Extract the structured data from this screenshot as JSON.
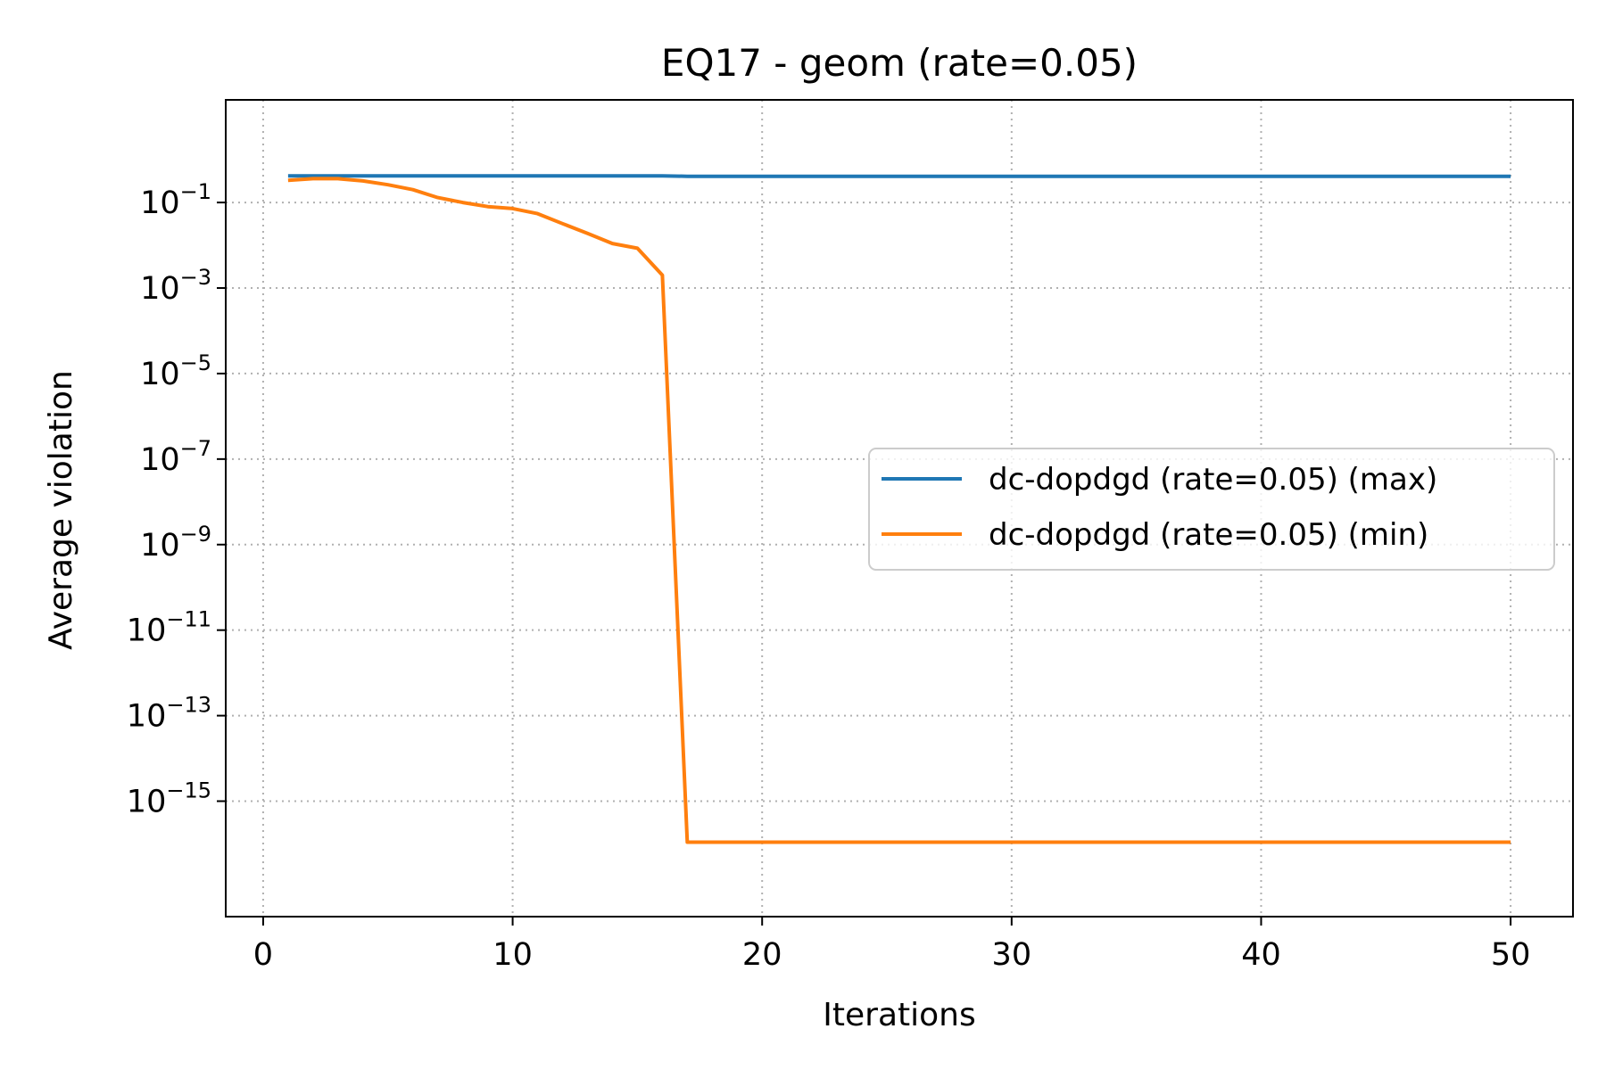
{
  "chart_data": {
    "type": "line",
    "title": "EQ17 - geom (rate=0.05)",
    "xlabel": "Iterations",
    "ylabel": "Average violation",
    "xlim": [
      -1.5,
      52.5
    ],
    "ylim_log10": [
      -17.7,
      1.4
    ],
    "yscale": "log",
    "xticks": [
      0,
      10,
      20,
      30,
      40,
      50
    ],
    "yticks_exp": [
      -1,
      -3,
      -5,
      -7,
      -9,
      -11,
      -13,
      -15
    ],
    "ytick_base": "10",
    "grid": true,
    "legend_position": "center-right",
    "series": [
      {
        "name": "dc-dopdgd (rate=0.05) (max)",
        "color": "#1f77b4",
        "x": [
          1,
          2,
          3,
          4,
          5,
          6,
          7,
          8,
          9,
          10,
          11,
          12,
          13,
          14,
          15,
          16,
          17,
          18,
          19,
          20,
          21,
          22,
          23,
          24,
          25,
          26,
          27,
          28,
          29,
          30,
          31,
          32,
          33,
          34,
          35,
          36,
          37,
          38,
          39,
          40,
          41,
          42,
          43,
          44,
          45,
          46,
          47,
          48,
          49,
          50
        ],
        "y": [
          0.42,
          0.42,
          0.42,
          0.42,
          0.42,
          0.42,
          0.42,
          0.42,
          0.42,
          0.42,
          0.42,
          0.42,
          0.42,
          0.42,
          0.42,
          0.42,
          0.41,
          0.41,
          0.41,
          0.41,
          0.41,
          0.41,
          0.41,
          0.41,
          0.41,
          0.41,
          0.41,
          0.41,
          0.41,
          0.41,
          0.41,
          0.41,
          0.41,
          0.41,
          0.41,
          0.41,
          0.41,
          0.41,
          0.41,
          0.41,
          0.41,
          0.41,
          0.41,
          0.41,
          0.41,
          0.41,
          0.41,
          0.41,
          0.41,
          0.41
        ]
      },
      {
        "name": "dc-dopdgd (rate=0.05) (min)",
        "color": "#ff7f0e",
        "x": [
          1,
          2,
          3,
          4,
          5,
          6,
          7,
          8,
          9,
          10,
          11,
          12,
          13,
          14,
          15,
          16,
          17,
          18,
          19,
          20,
          21,
          22,
          23,
          24,
          25,
          26,
          27,
          28,
          29,
          30,
          31,
          32,
          33,
          34,
          35,
          36,
          37,
          38,
          39,
          40,
          41,
          42,
          43,
          44,
          45,
          46,
          47,
          48,
          49,
          50
        ],
        "y": [
          0.33,
          0.36,
          0.36,
          0.32,
          0.26,
          0.2,
          0.13,
          0.1,
          0.08,
          0.072,
          0.055,
          0.032,
          0.019,
          0.011,
          0.0085,
          0.002,
          1.1e-16,
          1.1e-16,
          1.1e-16,
          1.1e-16,
          1.1e-16,
          1.1e-16,
          1.1e-16,
          1.1e-16,
          1.1e-16,
          1.1e-16,
          1.1e-16,
          1.1e-16,
          1.1e-16,
          1.1e-16,
          1.1e-16,
          1.1e-16,
          1.1e-16,
          1.1e-16,
          1.1e-16,
          1.1e-16,
          1.1e-16,
          1.1e-16,
          1.1e-16,
          1.1e-16,
          1.1e-16,
          1.1e-16,
          1.1e-16,
          1.1e-16,
          1.1e-16,
          1.1e-16,
          1.1e-16,
          1.1e-16,
          1.1e-16,
          1.1e-16
        ]
      }
    ]
  }
}
